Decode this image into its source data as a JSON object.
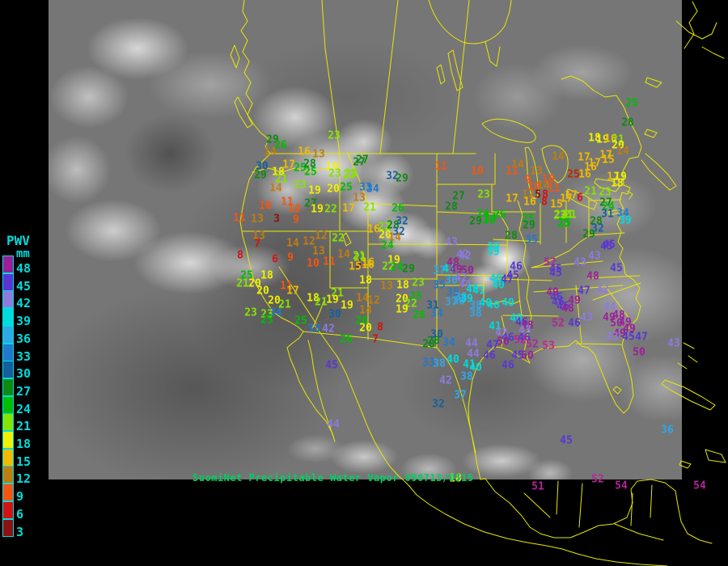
{
  "caption": {
    "text": "SuomiNet Precipitable Water Vapor 090713/0515"
  },
  "legend": {
    "title": "PWV",
    "unit": "mm",
    "entries": [
      {
        "value": 48,
        "color": "#9b1f9b"
      },
      {
        "value": 45,
        "color": "#5a35d5"
      },
      {
        "value": 42,
        "color": "#8f7ae0"
      },
      {
        "value": 39,
        "color": "#00dcdc"
      },
      {
        "value": 36,
        "color": "#2fa8e8"
      },
      {
        "value": 33,
        "color": "#2079cd"
      },
      {
        "value": 30,
        "color": "#155f9f"
      },
      {
        "value": 27,
        "color": "#0e8a12"
      },
      {
        "value": 24,
        "color": "#00bd00"
      },
      {
        "value": 21,
        "color": "#86e300"
      },
      {
        "value": 18,
        "color": "#f0f000"
      },
      {
        "value": 15,
        "color": "#f0bb00"
      },
      {
        "value": 12,
        "color": "#c07d10"
      },
      {
        "value": 9,
        "color": "#f55510"
      },
      {
        "value": 6,
        "color": "#d51212"
      },
      {
        "value": 3,
        "color": "#8f1010"
      }
    ]
  },
  "colors": {
    "background": "#000000",
    "map_outline": "#e8e800",
    "caption_text": "#00d060",
    "legend_text": "#00dcdc",
    "over_50": "#b8239b"
  },
  "stations": [
    [
      337,
      173,
      29
    ],
    [
      347,
      180,
      26
    ],
    [
      334,
      188,
      14
    ],
    [
      413,
      168,
      23
    ],
    [
      376,
      188,
      16
    ],
    [
      394,
      191,
      13
    ],
    [
      324,
      206,
      30
    ],
    [
      357,
      204,
      17
    ],
    [
      371,
      208,
      25
    ],
    [
      383,
      203,
      28
    ],
    [
      410,
      207,
      19
    ],
    [
      414,
      215,
      23
    ],
    [
      434,
      215,
      23
    ],
    [
      444,
      201,
      27
    ],
    [
      322,
      217,
      29
    ],
    [
      344,
      213,
      18
    ],
    [
      348,
      222,
      21
    ],
    [
      384,
      213,
      25
    ],
    [
      341,
      233,
      14
    ],
    [
      371,
      229,
      23
    ],
    [
      389,
      236,
      19
    ],
    [
      412,
      234,
      20
    ],
    [
      428,
      232,
      25
    ],
    [
      452,
      232,
      33
    ],
    [
      461,
      234,
      34
    ],
    [
      444,
      245,
      13
    ],
    [
      328,
      255,
      10
    ],
    [
      355,
      250,
      11
    ],
    [
      364,
      259,
      10
    ],
    [
      384,
      252,
      27
    ],
    [
      392,
      259,
      19
    ],
    [
      409,
      259,
      22
    ],
    [
      431,
      258,
      17
    ],
    [
      457,
      257,
      21
    ],
    [
      318,
      271,
      13
    ],
    [
      342,
      271,
      3
    ],
    [
      366,
      272,
      9
    ],
    [
      296,
      270,
      11
    ],
    [
      448,
      198,
      27
    ],
    [
      485,
      218,
      32
    ],
    [
      497,
      221,
      29
    ],
    [
      545,
      206,
      11
    ],
    [
      590,
      212,
      10
    ],
    [
      432,
      217,
      23
    ],
    [
      492,
      258,
      26
    ],
    [
      567,
      243,
      27
    ],
    [
      598,
      241,
      23
    ],
    [
      558,
      256,
      28
    ],
    [
      597,
      265,
      24
    ],
    [
      606,
      270,
      24
    ],
    [
      618,
      266,
      26
    ],
    [
      588,
      274,
      29
    ],
    [
      605,
      273,
      26
    ],
    [
      640,
      204,
      14
    ],
    [
      633,
      212,
      11
    ],
    [
      690,
      194,
      14
    ],
    [
      663,
      212,
      13
    ],
    [
      709,
      216,
      25,
      "#c22500"
    ],
    [
      653,
      223,
      9
    ],
    [
      678,
      222,
      10
    ],
    [
      660,
      231,
      10
    ],
    [
      672,
      230,
      14
    ],
    [
      685,
      233,
      11
    ],
    [
      653,
      241,
      12
    ],
    [
      665,
      241,
      5
    ],
    [
      674,
      241,
      8
    ],
    [
      633,
      246,
      17
    ],
    [
      655,
      250,
      16
    ],
    [
      673,
      250,
      8
    ],
    [
      688,
      253,
      15
    ],
    [
      706,
      242,
      17
    ],
    [
      717,
      245,
      6
    ],
    [
      692,
      267,
      23
    ],
    [
      701,
      266,
      21
    ],
    [
      697,
      277,
      25
    ],
    [
      653,
      271,
      25
    ],
    [
      654,
      279,
      29
    ],
    [
      632,
      292,
      28
    ],
    [
      657,
      297,
      35
    ],
    [
      610,
      306,
      39
    ],
    [
      558,
      300,
      43
    ],
    [
      462,
      284,
      16
    ],
    [
      475,
      281,
      22
    ],
    [
      486,
      279,
      28
    ],
    [
      497,
      274,
      32
    ],
    [
      493,
      287,
      32
    ],
    [
      476,
      291,
      20
    ],
    [
      488,
      294,
      14
    ],
    [
      479,
      304,
      24
    ],
    [
      444,
      317,
      21
    ],
    [
      443,
      327,
      5
    ],
    [
      455,
      325,
      16
    ],
    [
      487,
      322,
      19
    ],
    [
      480,
      330,
      22
    ],
    [
      491,
      331,
      24
    ],
    [
      505,
      333,
      29
    ],
    [
      418,
      295,
      22
    ],
    [
      320,
      292,
      13
    ],
    [
      318,
      302,
      7
    ],
    [
      297,
      316,
      8
    ],
    [
      362,
      301,
      14
    ],
    [
      382,
      299,
      12
    ],
    [
      397,
      292,
      12
    ],
    [
      340,
      321,
      6
    ],
    [
      359,
      319,
      9
    ],
    [
      394,
      311,
      13
    ],
    [
      387,
      326,
      10
    ],
    [
      407,
      324,
      11
    ],
    [
      425,
      315,
      14
    ],
    [
      445,
      319,
      21
    ],
    [
      439,
      330,
      15
    ],
    [
      455,
      328,
      16
    ],
    [
      305,
      341,
      25
    ],
    [
      330,
      341,
      18
    ],
    [
      300,
      351,
      21
    ],
    [
      315,
      351,
      20
    ],
    [
      325,
      360,
      20
    ],
    [
      354,
      354,
      11
    ],
    [
      362,
      360,
      17
    ],
    [
      339,
      372,
      20
    ],
    [
      352,
      377,
      21
    ],
    [
      387,
      369,
      18
    ],
    [
      417,
      363,
      21
    ],
    [
      411,
      371,
      19
    ],
    [
      397,
      374,
      21
    ],
    [
      429,
      378,
      19
    ],
    [
      310,
      387,
      23
    ],
    [
      330,
      389,
      23
    ],
    [
      341,
      387,
      34
    ],
    [
      330,
      396,
      25
    ],
    [
      414,
      389,
      30
    ],
    [
      448,
      369,
      14
    ],
    [
      462,
      372,
      12
    ],
    [
      452,
      384,
      14
    ],
    [
      447,
      397,
      26
    ],
    [
      452,
      406,
      20
    ],
    [
      470,
      405,
      8
    ],
    [
      464,
      420,
      7
    ],
    [
      428,
      420,
      26
    ],
    [
      372,
      397,
      25
    ],
    [
      388,
      407,
      33
    ],
    [
      406,
      407,
      42
    ],
    [
      410,
      452,
      45
    ],
    [
      412,
      525,
      44
    ],
    [
      478,
      354,
      13
    ],
    [
      498,
      353,
      18
    ],
    [
      452,
      347,
      18
    ],
    [
      517,
      350,
      23
    ],
    [
      497,
      370,
      20
    ],
    [
      514,
      367,
      25
    ],
    [
      508,
      376,
      22
    ],
    [
      497,
      383,
      19
    ],
    [
      518,
      390,
      26
    ],
    [
      536,
      422,
      28
    ],
    [
      543,
      335,
      37
    ],
    [
      555,
      333,
      41
    ],
    [
      564,
      334,
      49
    ],
    [
      578,
      335,
      50
    ],
    [
      572,
      315,
      42
    ],
    [
      560,
      325,
      48
    ],
    [
      558,
      347,
      36
    ],
    [
      570,
      344,
      42
    ],
    [
      575,
      352,
      44
    ],
    [
      543,
      353,
      35
    ],
    [
      613,
      345,
      40
    ],
    [
      616,
      353,
      40
    ],
    [
      627,
      346,
      47
    ],
    [
      634,
      341,
      45
    ],
    [
      638,
      330,
      46
    ],
    [
      610,
      312,
      39
    ],
    [
      575,
      317,
      42
    ],
    [
      680,
      325,
      52
    ],
    [
      687,
      338,
      45
    ],
    [
      560,
      362,
      35
    ],
    [
      570,
      368,
      38
    ],
    [
      584,
      358,
      40
    ],
    [
      592,
      360,
      41
    ],
    [
      558,
      374,
      37
    ],
    [
      567,
      373,
      36
    ],
    [
      577,
      370,
      39
    ],
    [
      588,
      378,
      38
    ],
    [
      600,
      375,
      40
    ],
    [
      610,
      378,
      40
    ],
    [
      628,
      375,
      40
    ],
    [
      535,
      378,
      31
    ],
    [
      540,
      388,
      34
    ],
    [
      588,
      388,
      38
    ],
    [
      540,
      414,
      30
    ],
    [
      530,
      426,
      28
    ],
    [
      555,
      424,
      34
    ],
    [
      583,
      425,
      44
    ],
    [
      612,
      404,
      41
    ],
    [
      638,
      394,
      40
    ],
    [
      645,
      399,
      46
    ],
    [
      652,
      403,
      48
    ],
    [
      649,
      409,
      43
    ],
    [
      620,
      412,
      43
    ],
    [
      628,
      418,
      46
    ],
    [
      648,
      418,
      46
    ],
    [
      658,
      426,
      52
    ],
    [
      678,
      428,
      53,
      "#cc2288"
    ],
    [
      585,
      438,
      44
    ],
    [
      640,
      440,
      45
    ],
    [
      652,
      440,
      50
    ],
    [
      628,
      452,
      46
    ],
    [
      588,
      455,
      40
    ],
    [
      609,
      427,
      47
    ],
    [
      622,
      423,
      50
    ],
    [
      643,
      421,
      52
    ],
    [
      605,
      440,
      46
    ],
    [
      530,
      449,
      33
    ],
    [
      543,
      450,
      38
    ],
    [
      560,
      445,
      40
    ],
    [
      580,
      451,
      41
    ],
    [
      577,
      466,
      38
    ],
    [
      551,
      471,
      42
    ],
    [
      569,
      489,
      37
    ],
    [
      542,
      500,
      32
    ],
    [
      750,
      305,
      45
    ],
    [
      735,
      317,
      43
    ],
    [
      717,
      325,
      43
    ],
    [
      687,
      333,
      45
    ],
    [
      762,
      332,
      45
    ],
    [
      733,
      342,
      48
    ],
    [
      683,
      362,
      49
    ],
    [
      688,
      368,
      46
    ],
    [
      690,
      374,
      46
    ],
    [
      696,
      379,
      46
    ],
    [
      722,
      360,
      47
    ],
    [
      710,
      372,
      49
    ],
    [
      702,
      382,
      48
    ],
    [
      745,
      359,
      42
    ],
    [
      754,
      380,
      44
    ],
    [
      725,
      393,
      43
    ],
    [
      710,
      400,
      46
    ],
    [
      690,
      400,
      52
    ],
    [
      753,
      393,
      49
    ],
    [
      765,
      390,
      48
    ],
    [
      762,
      400,
      50
    ],
    [
      773,
      399,
      49
    ],
    [
      778,
      407,
      49
    ],
    [
      766,
      413,
      49
    ],
    [
      777,
      417,
      45
    ],
    [
      757,
      417,
      43
    ],
    [
      793,
      417,
      47
    ],
    [
      790,
      436,
      50
    ],
    [
      833,
      425,
      43
    ],
    [
      781,
      128,
      25
    ],
    [
      776,
      152,
      28
    ],
    [
      735,
      171,
      18
    ],
    [
      745,
      173,
      19
    ],
    [
      755,
      172,
      16
    ],
    [
      764,
      173,
      21
    ],
    [
      764,
      180,
      20
    ],
    [
      749,
      192,
      17
    ],
    [
      752,
      198,
      15
    ],
    [
      770,
      187,
      14
    ],
    [
      722,
      195,
      17
    ],
    [
      735,
      202,
      17
    ],
    [
      730,
      207,
      16
    ],
    [
      723,
      216,
      16
    ],
    [
      758,
      219,
      17
    ],
    [
      767,
      219,
      19
    ],
    [
      763,
      227,
      18
    ],
    [
      730,
      237,
      21
    ],
    [
      748,
      238,
      23
    ],
    [
      700,
      246,
      17
    ],
    [
      749,
      251,
      27
    ],
    [
      752,
      256,
      24
    ],
    [
      751,
      265,
      31
    ],
    [
      770,
      264,
      34
    ],
    [
      773,
      273,
      39
    ],
    [
      693,
      266,
      23
    ],
    [
      705,
      266,
      21
    ],
    [
      698,
      276,
      25
    ],
    [
      737,
      274,
      28
    ],
    [
      739,
      283,
      32
    ],
    [
      728,
      290,
      29
    ],
    [
      753,
      303,
      45
    ],
    [
      665,
      602,
      51
    ],
    [
      739,
      593,
      52
    ],
    [
      768,
      601,
      54
    ],
    [
      700,
      545,
      45
    ],
    [
      825,
      532,
      36
    ],
    [
      865,
      601,
      54
    ],
    [
      563,
      592,
      18
    ]
  ]
}
